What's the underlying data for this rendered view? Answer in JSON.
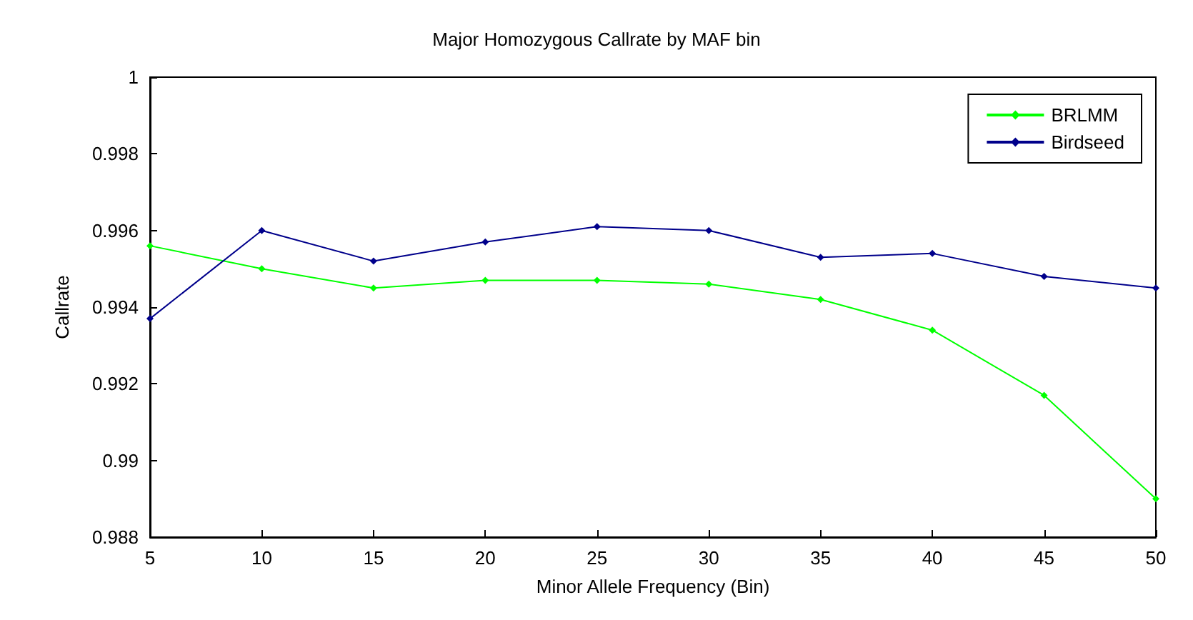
{
  "chart_data": {
    "type": "line",
    "title": "Major Homozygous Callrate by MAF bin",
    "xlabel": "Minor Allele Frequency (Bin)",
    "ylabel": "Callrate",
    "x": [
      5,
      10,
      15,
      20,
      25,
      30,
      35,
      40,
      45,
      50
    ],
    "series": [
      {
        "name": "BRLMM",
        "color": "#00ff00",
        "values": [
          0.9956,
          0.995,
          0.9945,
          0.9947,
          0.9947,
          0.9946,
          0.9942,
          0.9934,
          0.9917,
          0.989
        ]
      },
      {
        "name": "Birdseed",
        "color": "#00008b",
        "values": [
          0.9937,
          0.996,
          0.9952,
          0.9957,
          0.9961,
          0.996,
          0.9953,
          0.9954,
          0.9948,
          0.9945
        ]
      }
    ],
    "xlim": [
      5,
      50
    ],
    "xticks": [
      5,
      10,
      15,
      20,
      25,
      30,
      35,
      40,
      45,
      50
    ],
    "ylim": [
      0.988,
      1
    ],
    "yticks": [
      0.988,
      0.99,
      0.992,
      0.994,
      0.996,
      0.998,
      1
    ],
    "grid": false,
    "legend": "top right",
    "marker": "diamond",
    "line_style": "solid"
  }
}
